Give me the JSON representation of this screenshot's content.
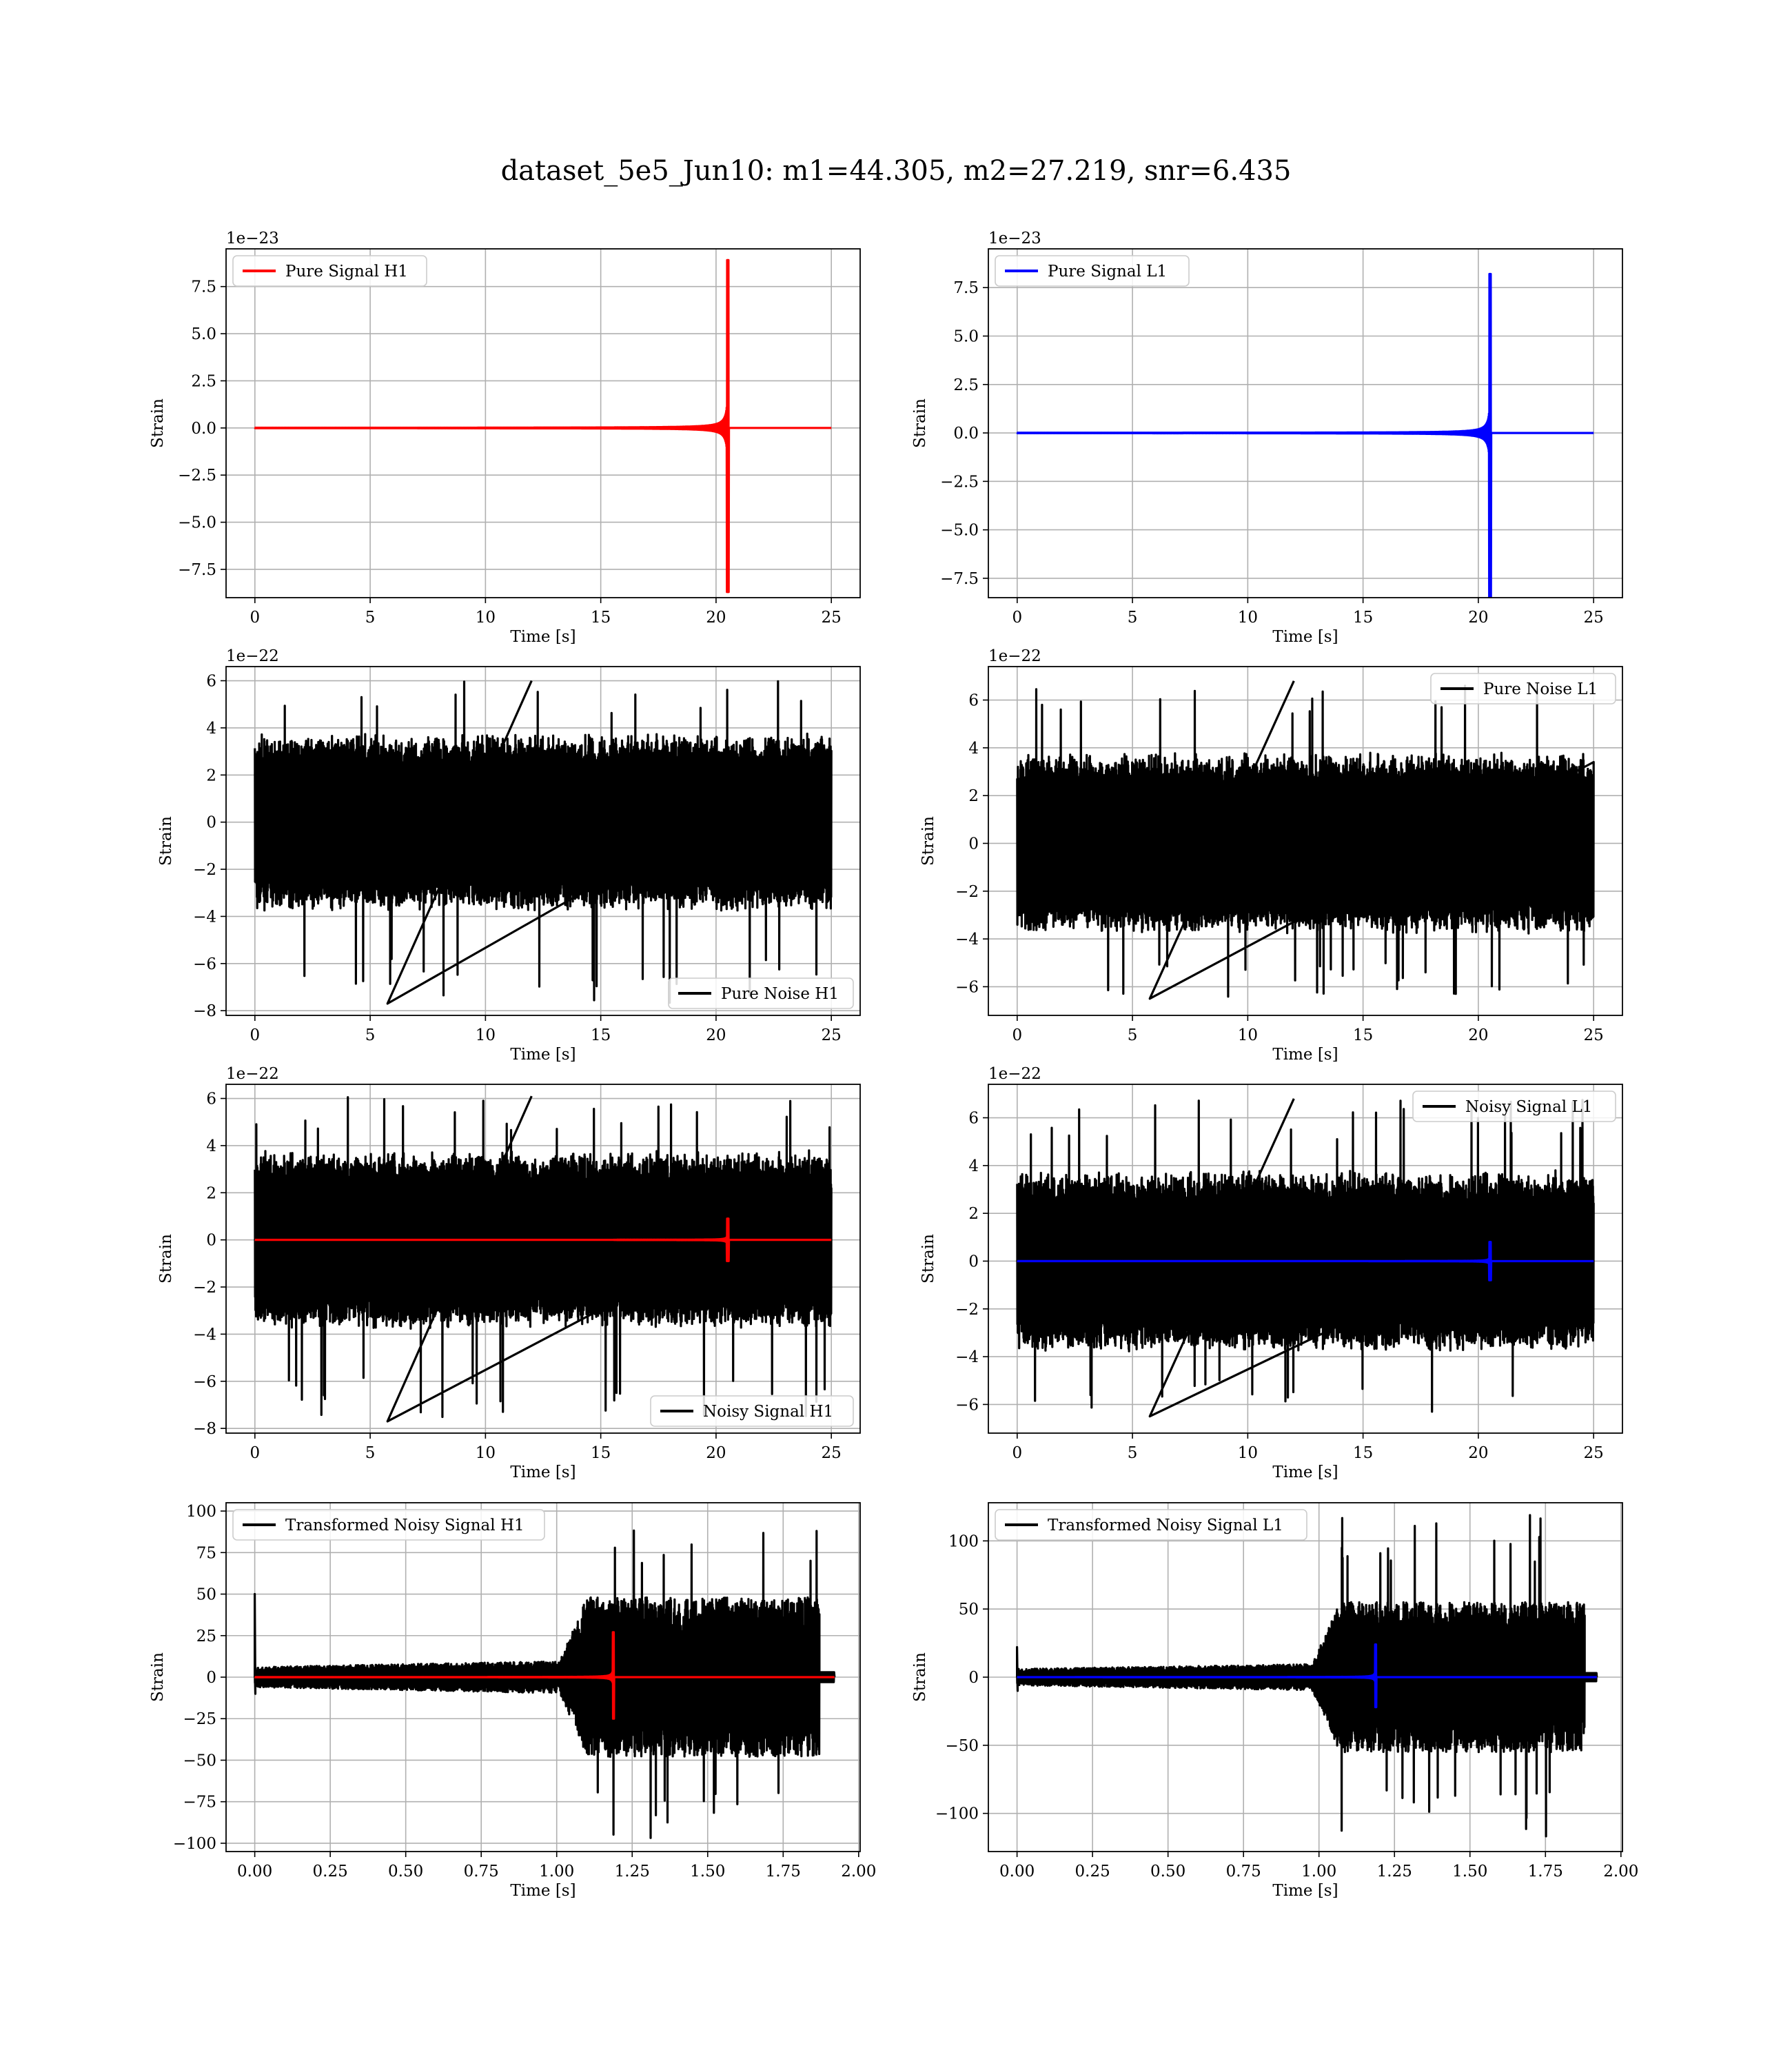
{
  "title": "dataset_5e5_Jun10: m1=44.305, m2=27.219, snr=6.435",
  "chart_data": [
    {
      "type": "line",
      "ylabel": "Strain",
      "xlabel": "Time [s]",
      "offset_text": "1e−23",
      "xlim": [
        -1.25,
        26.25
      ],
      "ylim": [
        -9.0,
        9.5
      ],
      "xticks": [
        0,
        5,
        10,
        15,
        20,
        25
      ],
      "xtick_labels": [
        "0",
        "5",
        "10",
        "15",
        "20",
        "25"
      ],
      "yticks": [
        -7.5,
        -5.0,
        -2.5,
        0.0,
        2.5,
        5.0,
        7.5
      ],
      "ytick_labels": [
        "−7.5",
        "−5.0",
        "−2.5",
        "0.0",
        "2.5",
        "5.0",
        "7.5"
      ],
      "grid": true,
      "legend": "upper left",
      "series": [
        {
          "name": "Pure Signal H1",
          "color": "#ff0000",
          "kind": "chirp",
          "x_start": 0,
          "x_end": 25,
          "t_merger": 20.55,
          "peak_pos": 8.9,
          "peak_neg": -8.7,
          "noise_amp": 0
        }
      ]
    },
    {
      "type": "line",
      "ylabel": "Strain",
      "xlabel": "Time [s]",
      "offset_text": "1e−23",
      "xlim": [
        -1.25,
        26.25
      ],
      "ylim": [
        -8.5,
        9.5
      ],
      "xticks": [
        0,
        5,
        10,
        15,
        20,
        25
      ],
      "xtick_labels": [
        "0",
        "5",
        "10",
        "15",
        "20",
        "25"
      ],
      "yticks": [
        -7.5,
        -5.0,
        -2.5,
        0.0,
        2.5,
        5.0,
        7.5
      ],
      "ytick_labels": [
        "−7.5",
        "−5.0",
        "−2.5",
        "0.0",
        "2.5",
        "5.0",
        "7.5"
      ],
      "grid": true,
      "legend": "upper left",
      "series": [
        {
          "name": "Pure Signal L1",
          "color": "#0000ff",
          "kind": "chirp",
          "x_start": 0,
          "x_end": 25,
          "t_merger": 20.55,
          "peak_pos": 8.2,
          "peak_neg": -8.6,
          "noise_amp": 0
        }
      ]
    },
    {
      "type": "line",
      "ylabel": "Strain",
      "xlabel": "Time [s]",
      "offset_text": "1e−22",
      "xlim": [
        -1.25,
        26.25
      ],
      "ylim": [
        -8.2,
        6.6
      ],
      "xticks": [
        0,
        5,
        10,
        15,
        20,
        25
      ],
      "xtick_labels": [
        "0",
        "5",
        "10",
        "15",
        "20",
        "25"
      ],
      "yticks": [
        -8,
        -6,
        -4,
        -2,
        0,
        2,
        4,
        6
      ],
      "ytick_labels": [
        "−8",
        "−6",
        "−4",
        "−2",
        "0",
        "2",
        "4",
        "6"
      ],
      "grid": true,
      "legend": "lower right",
      "series": [
        {
          "name": "Pure Noise H1",
          "color": "#000000",
          "kind": "noise",
          "x_start": 0,
          "x_end": 25,
          "noise_amp": 3.8,
          "peak_pos": 6.0,
          "peak_neg": -7.7
        }
      ]
    },
    {
      "type": "line",
      "ylabel": "Strain",
      "xlabel": "Time [s]",
      "offset_text": "1e−22",
      "xlim": [
        -1.25,
        26.25
      ],
      "ylim": [
        -7.2,
        7.4
      ],
      "xticks": [
        0,
        5,
        10,
        15,
        20,
        25
      ],
      "xtick_labels": [
        "0",
        "5",
        "10",
        "15",
        "20",
        "25"
      ],
      "yticks": [
        -6,
        -4,
        -2,
        0,
        2,
        4,
        6
      ],
      "ytick_labels": [
        "−6",
        "−4",
        "−2",
        "0",
        "2",
        "4",
        "6"
      ],
      "grid": true,
      "legend": "upper right",
      "series": [
        {
          "name": "Pure Noise L1",
          "color": "#000000",
          "kind": "noise",
          "x_start": 0,
          "x_end": 25,
          "noise_amp": 3.8,
          "peak_pos": 6.8,
          "peak_neg": -6.5
        }
      ]
    },
    {
      "type": "line",
      "ylabel": "Strain",
      "xlabel": "Time [s]",
      "offset_text": "1e−22",
      "xlim": [
        -1.25,
        26.25
      ],
      "ylim": [
        -8.2,
        6.6
      ],
      "xticks": [
        0,
        5,
        10,
        15,
        20,
        25
      ],
      "xtick_labels": [
        "0",
        "5",
        "10",
        "15",
        "20",
        "25"
      ],
      "yticks": [
        -8,
        -6,
        -4,
        -2,
        0,
        2,
        4,
        6
      ],
      "ytick_labels": [
        "−8",
        "−6",
        "−4",
        "−2",
        "0",
        "2",
        "4",
        "6"
      ],
      "grid": true,
      "legend": "lower right",
      "series": [
        {
          "name": "Noisy Signal H1",
          "color": "#000000",
          "kind": "noise",
          "x_start": 0,
          "x_end": 25,
          "noise_amp": 3.8,
          "peak_pos": 6.1,
          "peak_neg": -7.7
        },
        {
          "name": "",
          "color": "#ff0000",
          "kind": "chirp",
          "x_start": 0,
          "x_end": 25,
          "t_merger": 20.55,
          "peak_pos": 0.9,
          "peak_neg": -0.9,
          "noise_amp": 0
        }
      ]
    },
    {
      "type": "line",
      "ylabel": "Strain",
      "xlabel": "Time [s]",
      "offset_text": "1e−22",
      "xlim": [
        -1.25,
        26.25
      ],
      "ylim": [
        -7.2,
        7.4
      ],
      "xticks": [
        0,
        5,
        10,
        15,
        20,
        25
      ],
      "xtick_labels": [
        "0",
        "5",
        "10",
        "15",
        "20",
        "25"
      ],
      "yticks": [
        -6,
        -4,
        -2,
        0,
        2,
        4,
        6
      ],
      "ytick_labels": [
        "−6",
        "−4",
        "−2",
        "0",
        "2",
        "4",
        "6"
      ],
      "grid": true,
      "legend": "upper right",
      "series": [
        {
          "name": "Noisy Signal L1",
          "color": "#000000",
          "kind": "noise",
          "x_start": 0,
          "x_end": 25,
          "noise_amp": 3.8,
          "peak_pos": 6.8,
          "peak_neg": -6.5
        },
        {
          "name": "",
          "color": "#0000ff",
          "kind": "chirp",
          "x_start": 0,
          "x_end": 25,
          "t_merger": 20.55,
          "peak_pos": 0.8,
          "peak_neg": -0.8,
          "noise_amp": 0
        }
      ]
    },
    {
      "type": "line",
      "ylabel": "Strain",
      "xlabel": "Time [s]",
      "offset_text": "",
      "xlim": [
        -0.095,
        2.005
      ],
      "ylim": [
        -105,
        105
      ],
      "xticks": [
        0,
        0.25,
        0.5,
        0.75,
        1.0,
        1.25,
        1.5,
        1.75,
        2.0
      ],
      "xtick_labels": [
        "0.00",
        "0.25",
        "0.50",
        "0.75",
        "1.00",
        "1.25",
        "1.50",
        "1.75",
        "2.00"
      ],
      "yticks": [
        -100,
        -75,
        -50,
        -25,
        0,
        25,
        50,
        75,
        100
      ],
      "ytick_labels": [
        "−100",
        "−75",
        "−50",
        "−25",
        "0",
        "25",
        "50",
        "75",
        "100"
      ],
      "grid": true,
      "legend": "upper left",
      "series": [
        {
          "name": "Transformed Noisy Signal H1",
          "color": "#000000",
          "kind": "whitened",
          "x_start": 0,
          "x_end": 1.92,
          "cutoff": 1.87,
          "t_rise": 1.1,
          "noise_amp": 6,
          "loud_amp": 48,
          "peak_pos": 95,
          "peak_neg": -98,
          "spike_start": 50
        },
        {
          "name": "",
          "color": "#ff0000",
          "kind": "chirp",
          "x_start": 0,
          "x_end": 1.92,
          "t_merger": 1.19,
          "peak_pos": 27,
          "peak_neg": -25,
          "noise_amp": 0
        }
      ]
    },
    {
      "type": "line",
      "ylabel": "Strain",
      "xlabel": "Time [s]",
      "offset_text": "",
      "xlim": [
        -0.095,
        2.005
      ],
      "ylim": [
        -128,
        128
      ],
      "xticks": [
        0,
        0.25,
        0.5,
        0.75,
        1.0,
        1.25,
        1.5,
        1.75,
        2.0
      ],
      "xtick_labels": [
        "0.00",
        "0.25",
        "0.50",
        "0.75",
        "1.00",
        "1.25",
        "1.50",
        "1.75",
        "2.00"
      ],
      "yticks": [
        -100,
        -50,
        0,
        50,
        100
      ],
      "ytick_labels": [
        "−100",
        "−50",
        "0",
        "50",
        "100"
      ],
      "grid": true,
      "legend": "upper left",
      "series": [
        {
          "name": "Transformed Noisy Signal L1",
          "color": "#000000",
          "kind": "whitened",
          "x_start": 0,
          "x_end": 1.92,
          "cutoff": 1.88,
          "t_rise": 1.07,
          "noise_amp": 6,
          "loud_amp": 55,
          "peak_pos": 120,
          "peak_neg": -118,
          "spike_start": 22
        },
        {
          "name": "",
          "color": "#0000ff",
          "kind": "chirp",
          "x_start": 0,
          "x_end": 1.92,
          "t_merger": 1.19,
          "peak_pos": 24,
          "peak_neg": -22,
          "noise_amp": 0
        }
      ]
    }
  ]
}
